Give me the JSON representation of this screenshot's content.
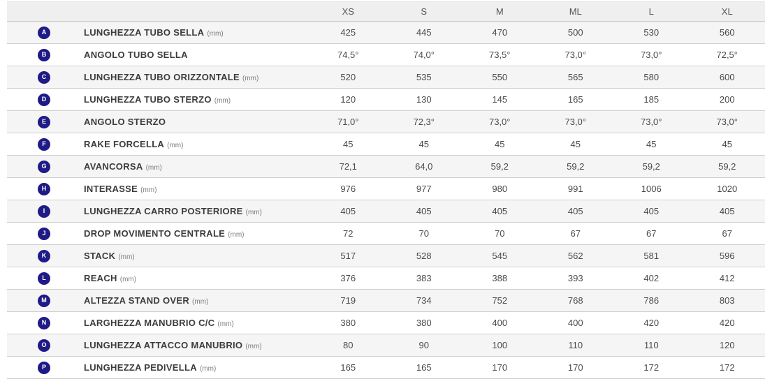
{
  "accent_color": "#1e1b87",
  "stripe_color": "#f5f5f5",
  "header_bg": "#efeff0",
  "table": {
    "columns": [
      "XS",
      "S",
      "M",
      "ML",
      "L",
      "XL"
    ],
    "rows": [
      {
        "letter": "A",
        "label": "LUNGHEZZA TUBO SELLA",
        "unit": "(mm)",
        "values": [
          "425",
          "445",
          "470",
          "500",
          "530",
          "560"
        ]
      },
      {
        "letter": "B",
        "label": "ANGOLO TUBO SELLA",
        "unit": "",
        "values": [
          "74,5°",
          "74,0°",
          "73,5°",
          "73,0°",
          "73,0°",
          "72,5°"
        ]
      },
      {
        "letter": "C",
        "label": "LUNGHEZZA TUBO ORIZZONTALE",
        "unit": "(mm)",
        "values": [
          "520",
          "535",
          "550",
          "565",
          "580",
          "600"
        ]
      },
      {
        "letter": "D",
        "label": "LUNGHEZZA TUBO STERZO",
        "unit": "(mm)",
        "values": [
          "120",
          "130",
          "145",
          "165",
          "185",
          "200"
        ]
      },
      {
        "letter": "E",
        "label": "ANGOLO STERZO",
        "unit": "",
        "values": [
          "71,0°",
          "72,3°",
          "73,0°",
          "73,0°",
          "73,0°",
          "73,0°"
        ]
      },
      {
        "letter": "F",
        "label": "RAKE FORCELLA",
        "unit": "(mm)",
        "values": [
          "45",
          "45",
          "45",
          "45",
          "45",
          "45"
        ]
      },
      {
        "letter": "G",
        "label": "AVANCORSA",
        "unit": "(mm)",
        "values": [
          "72,1",
          "64,0",
          "59,2",
          "59,2",
          "59,2",
          "59,2"
        ]
      },
      {
        "letter": "H",
        "label": "INTERASSE",
        "unit": "(mm)",
        "values": [
          "976",
          "977",
          "980",
          "991",
          "1006",
          "1020"
        ]
      },
      {
        "letter": "I",
        "label": "LUNGHEZZA CARRO POSTERIORE",
        "unit": "(mm)",
        "values": [
          "405",
          "405",
          "405",
          "405",
          "405",
          "405"
        ]
      },
      {
        "letter": "J",
        "label": "DROP MOVIMENTO CENTRALE",
        "unit": "(mm)",
        "values": [
          "72",
          "70",
          "70",
          "67",
          "67",
          "67"
        ]
      },
      {
        "letter": "K",
        "label": "STACK",
        "unit": "(mm)",
        "values": [
          "517",
          "528",
          "545",
          "562",
          "581",
          "596"
        ]
      },
      {
        "letter": "L",
        "label": "REACH",
        "unit": "(mm)",
        "values": [
          "376",
          "383",
          "388",
          "393",
          "402",
          "412"
        ]
      },
      {
        "letter": "M",
        "label": "ALTEZZA STAND OVER",
        "unit": "(mm)",
        "values": [
          "719",
          "734",
          "752",
          "768",
          "786",
          "803"
        ]
      },
      {
        "letter": "N",
        "label": "LARGHEZZA MANUBRIO C/C",
        "unit": "(mm)",
        "values": [
          "380",
          "380",
          "400",
          "400",
          "420",
          "420"
        ]
      },
      {
        "letter": "O",
        "label": "LUNGHEZZA ATTACCO MANUBRIO",
        "unit": "(mm)",
        "values": [
          "80",
          "90",
          "100",
          "110",
          "110",
          "120"
        ]
      },
      {
        "letter": "P",
        "label": "LUNGHEZZA PEDIVELLA",
        "unit": "(mm)",
        "values": [
          "165",
          "165",
          "170",
          "170",
          "172",
          "172"
        ]
      }
    ]
  }
}
